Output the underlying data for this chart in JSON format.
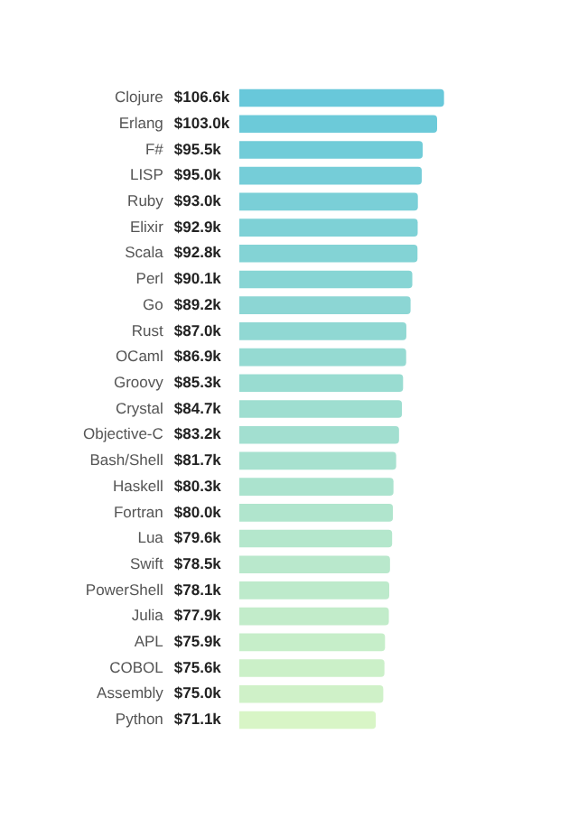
{
  "chart_data": {
    "type": "bar",
    "orientation": "horizontal",
    "tick_labels": "y",
    "grid": false,
    "legend": false,
    "categories": [
      "Clojure",
      "Erlang",
      "F#",
      "LISP",
      "Ruby",
      "Elixir",
      "Scala",
      "Perl",
      "Go",
      "Rust",
      "OCaml",
      "Groovy",
      "Crystal",
      "Objective-C",
      "Bash/Shell",
      "Haskell",
      "Fortran",
      "Lua",
      "Swift",
      "PowerShell",
      "Julia",
      "APL",
      "COBOL",
      "Assembly",
      "Python"
    ],
    "values": [
      106.6,
      103.0,
      95.5,
      95.0,
      93.0,
      92.9,
      92.8,
      90.1,
      89.2,
      87.0,
      86.9,
      85.3,
      84.7,
      83.2,
      81.7,
      80.3,
      80.0,
      79.6,
      78.5,
      78.1,
      77.9,
      75.9,
      75.6,
      75.0,
      71.1
    ],
    "value_labels": [
      "$106.6k",
      "$103.0k",
      "$95.5k",
      "$95.0k",
      "$93.0k",
      "$92.9k",
      "$92.8k",
      "$90.1k",
      "$89.2k",
      "$87.0k",
      "$86.9k",
      "$85.3k",
      "$84.7k",
      "$83.2k",
      "$81.7k",
      "$80.3k",
      "$80.0k",
      "$79.6k",
      "$78.5k",
      "$78.1k",
      "$77.9k",
      "$75.9k",
      "$75.6k",
      "$75.0k",
      "$71.1k"
    ],
    "colors": [
      "#68c8da",
      "#6ccad9",
      "#71ccd8",
      "#75cdd8",
      "#7acfd7",
      "#7ed1d6",
      "#83d3d5",
      "#87d5d4",
      "#8cd6d4",
      "#90d8d3",
      "#95dad2",
      "#99dcd1",
      "#9eded0",
      "#a2dfd0",
      "#a7e1cf",
      "#abe3ce",
      "#b0e5cd",
      "#b4e7cc",
      "#b9e8cc",
      "#bdeacb",
      "#c2ecca",
      "#c6eec9",
      "#cbf0c8",
      "#cff1c8",
      "#d8f5c6"
    ]
  }
}
